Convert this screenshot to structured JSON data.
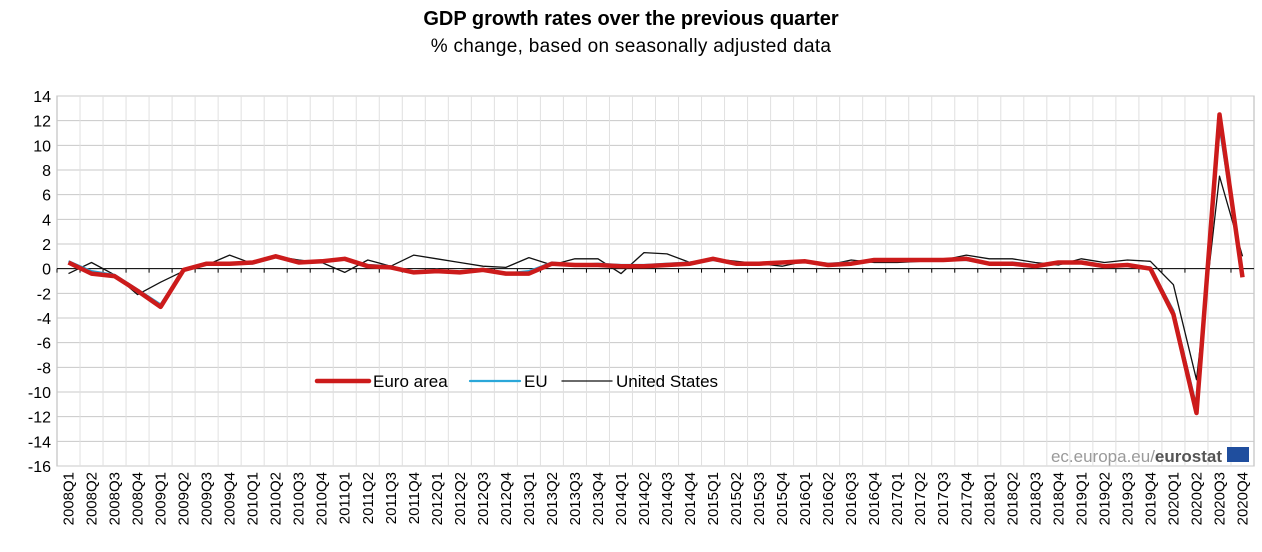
{
  "chart_data": {
    "type": "line",
    "title": "GDP growth rates over the previous quarter",
    "subtitle": "% change, based on seasonally adjusted data",
    "xlabel": "",
    "ylabel": "",
    "ylim": [
      -16,
      14
    ],
    "yticks": [
      14,
      12,
      10,
      8,
      6,
      4,
      2,
      0,
      -2,
      -4,
      -6,
      -8,
      -10,
      -12,
      -14,
      -16
    ],
    "grid": true,
    "legend_placement": "bottom-left inside plot",
    "categories": [
      "2008Q1",
      "2008Q2",
      "2008Q3",
      "2008Q4",
      "2009Q1",
      "2009Q2",
      "2009Q3",
      "2009Q4",
      "2010Q1",
      "2010Q2",
      "2010Q3",
      "2010Q4",
      "2011Q1",
      "2011Q2",
      "2011Q3",
      "2011Q4",
      "2012Q1",
      "2012Q2",
      "2012Q3",
      "2012Q4",
      "2013Q1",
      "2013Q2",
      "2013Q3",
      "2013Q4",
      "2014Q1",
      "2014Q2",
      "2014Q3",
      "2014Q4",
      "2015Q1",
      "2015Q2",
      "2015Q3",
      "2015Q4",
      "2016Q1",
      "2016Q2",
      "2016Q3",
      "2016Q4",
      "2017Q1",
      "2017Q2",
      "2017Q3",
      "2017Q4",
      "2018Q1",
      "2018Q2",
      "2018Q3",
      "2018Q4",
      "2019Q1",
      "2019Q2",
      "2019Q3",
      "2019Q4",
      "2020Q1",
      "2020Q2",
      "2020Q3",
      "2020Q4"
    ],
    "series": [
      {
        "name": "Euro area",
        "color": "#cc1b1b",
        "values": [
          0.5,
          -0.4,
          -0.6,
          -1.8,
          -3.1,
          -0.1,
          0.4,
          0.4,
          0.5,
          1.0,
          0.5,
          0.6,
          0.8,
          0.2,
          0.1,
          -0.3,
          -0.2,
          -0.3,
          -0.1,
          -0.4,
          -0.4,
          0.4,
          0.3,
          0.3,
          0.2,
          0.2,
          0.3,
          0.4,
          0.8,
          0.4,
          0.4,
          0.5,
          0.6,
          0.3,
          0.4,
          0.7,
          0.7,
          0.7,
          0.7,
          0.8,
          0.4,
          0.4,
          0.2,
          0.5,
          0.5,
          0.2,
          0.3,
          0.0,
          -3.7,
          -11.7,
          12.5,
          -0.7
        ]
      },
      {
        "name": "EU",
        "color": "#2aa7d9",
        "values": [
          0.6,
          -0.2,
          -0.5,
          -1.7,
          -2.9,
          -0.1,
          0.4,
          0.4,
          0.4,
          1.0,
          0.6,
          0.5,
          0.8,
          0.3,
          0.2,
          -0.3,
          -0.1,
          -0.3,
          0.0,
          -0.4,
          -0.2,
          0.5,
          0.3,
          0.4,
          0.3,
          0.3,
          0.4,
          0.5,
          0.7,
          0.4,
          0.4,
          0.5,
          0.6,
          0.4,
          0.5,
          0.7,
          0.7,
          0.7,
          0.7,
          0.7,
          0.4,
          0.5,
          0.3,
          0.4,
          0.5,
          0.2,
          0.3,
          0.1,
          -3.4,
          -11.2,
          11.5,
          -0.4
        ]
      },
      {
        "name": "United States",
        "color": "#111111",
        "values": [
          -0.4,
          0.5,
          -0.5,
          -2.1,
          -1.1,
          -0.2,
          0.3,
          1.1,
          0.4,
          1.0,
          0.7,
          0.5,
          -0.3,
          0.7,
          0.2,
          1.1,
          0.8,
          0.5,
          0.2,
          0.1,
          0.9,
          0.3,
          0.8,
          0.8,
          -0.4,
          1.3,
          1.2,
          0.5,
          0.8,
          0.6,
          0.4,
          0.2,
          0.6,
          0.3,
          0.7,
          0.5,
          0.5,
          0.6,
          0.7,
          1.1,
          0.8,
          0.8,
          0.5,
          0.3,
          0.8,
          0.5,
          0.7,
          0.6,
          -1.3,
          -9.0,
          7.5,
          1.0
        ]
      }
    ]
  },
  "watermark": {
    "prefix": "ec.europa.eu/",
    "brand": "eurostat"
  }
}
